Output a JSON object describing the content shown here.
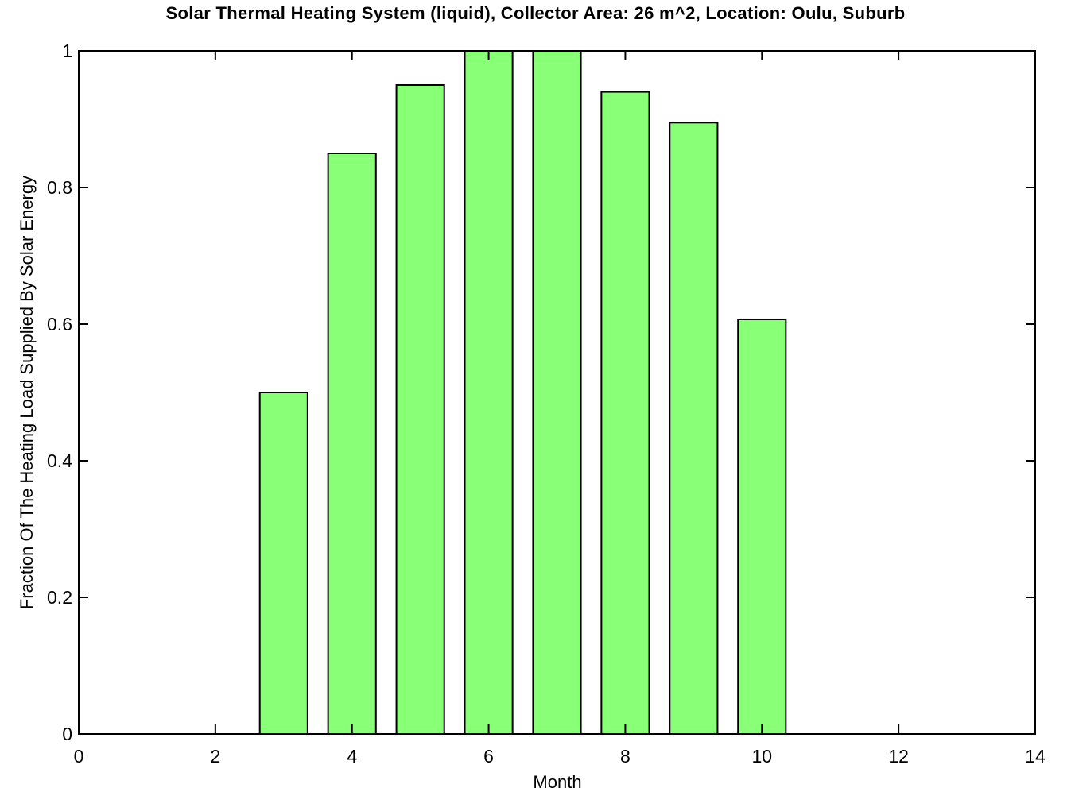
{
  "chart_data": {
    "type": "bar",
    "title": "Solar Thermal Heating System (liquid), Collector Area: 26 m^2, Location: Oulu, Suburb",
    "xlabel": "Month",
    "ylabel": "Fraction Of The Heating Load Supplied By Solar Energy",
    "x": [
      3,
      4,
      5,
      6,
      7,
      8,
      9,
      10
    ],
    "values": [
      0.5,
      0.85,
      0.95,
      1.0,
      1.0,
      0.94,
      0.895,
      0.607
    ],
    "xlim": [
      0,
      14
    ],
    "ylim": [
      0,
      1
    ],
    "x_ticks": [
      0,
      2,
      4,
      6,
      8,
      10,
      12,
      14
    ],
    "y_ticks": [
      0,
      0.2,
      0.4,
      0.6,
      0.8,
      1
    ],
    "x_tick_labels": [
      "0",
      "2",
      "4",
      "6",
      "8",
      "10",
      "12",
      "14"
    ],
    "y_tick_labels": [
      "0",
      "0.2",
      "0.4",
      "0.6",
      "0.8",
      "1"
    ],
    "bar_color": "#88ff77",
    "bar_edge_color": "#000000",
    "grid": false,
    "legend": "none"
  }
}
